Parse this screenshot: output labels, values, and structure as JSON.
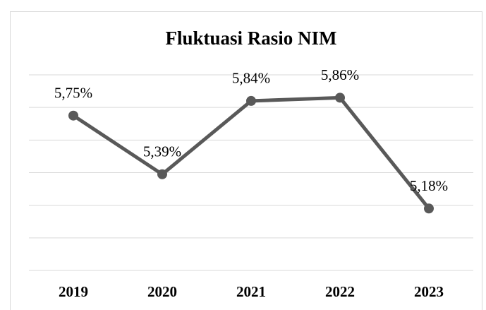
{
  "chart_data": {
    "type": "line",
    "title": "Fluktuasi Rasio NIM",
    "categories": [
      "2019",
      "2020",
      "2021",
      "2022",
      "2023"
    ],
    "series": [
      {
        "name": "NIM",
        "color": "#595959",
        "values": [
          5.75,
          5.39,
          5.84,
          5.86,
          5.18
        ],
        "value_labels": [
          "5,75%",
          "5,39%",
          "5,84%",
          "5,86%",
          "5,18%"
        ]
      }
    ],
    "ylim": [
      4.8,
      6.0
    ],
    "yticks": [
      4.8,
      5,
      5.2,
      5.4,
      5.6,
      5.8,
      6
    ],
    "grid": true
  }
}
